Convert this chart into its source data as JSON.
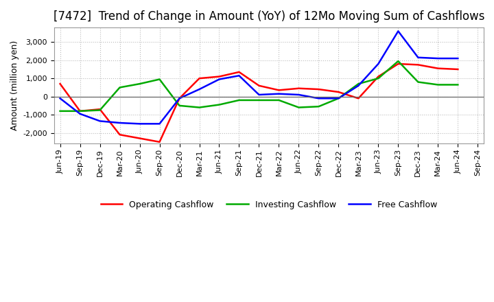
{
  "title": "[7472]  Trend of Change in Amount (YoY) of 12Mo Moving Sum of Cashflows",
  "ylabel": "Amount (million yen)",
  "x_labels": [
    "Jun-19",
    "Sep-19",
    "Dec-19",
    "Mar-20",
    "Jun-20",
    "Sep-20",
    "Dec-20",
    "Mar-21",
    "Jun-21",
    "Sep-21",
    "Dec-21",
    "Mar-22",
    "Jun-22",
    "Sep-22",
    "Dec-22",
    "Mar-23",
    "Jun-23",
    "Sep-23",
    "Dec-23",
    "Mar-24",
    "Jun-24",
    "Sep-24"
  ],
  "operating": [
    700,
    -800,
    -700,
    -2100,
    -2300,
    -2500,
    -100,
    1000,
    1100,
    1350,
    600,
    350,
    450,
    400,
    250,
    -100,
    1100,
    1800,
    1750,
    1550,
    1500,
    null
  ],
  "investing": [
    -800,
    -800,
    -750,
    500,
    700,
    950,
    -500,
    -600,
    -450,
    -200,
    -200,
    -200,
    -600,
    -550,
    -100,
    700,
    1000,
    1950,
    800,
    650,
    650,
    null
  ],
  "free": [
    -100,
    -950,
    -1350,
    -1450,
    -1500,
    -1500,
    -100,
    400,
    950,
    1150,
    100,
    150,
    100,
    -100,
    -100,
    600,
    1800,
    3600,
    2150,
    2100,
    2100,
    null
  ],
  "ylim": [
    -2600,
    3800
  ],
  "yticks": [
    -2000,
    -1000,
    0,
    1000,
    2000,
    3000
  ],
  "operating_color": "#ff0000",
  "investing_color": "#00aa00",
  "free_color": "#0000ff",
  "bg_color": "#ffffff",
  "plot_bg_color": "#ffffff",
  "grid_color": "#bbbbbb",
  "zero_line_color": "#666666",
  "title_fontsize": 12,
  "label_fontsize": 9,
  "tick_fontsize": 8,
  "legend_fontsize": 9
}
